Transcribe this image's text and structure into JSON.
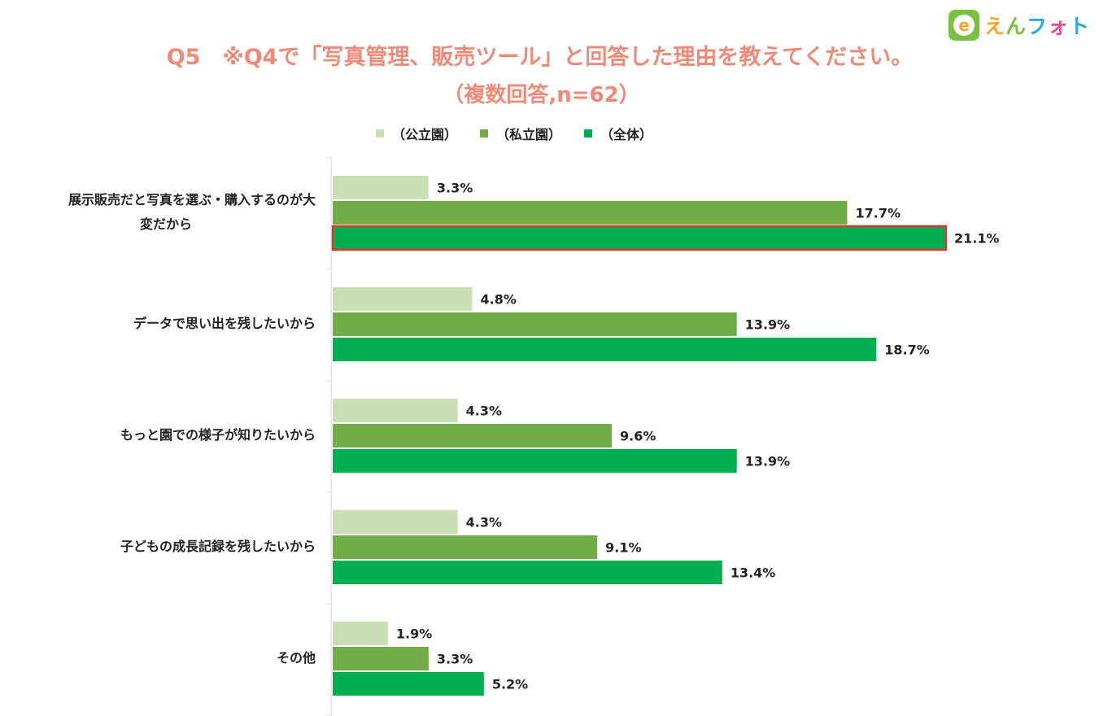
{
  "brand": {
    "logo_letter": "e",
    "name": "えんフォト"
  },
  "chart_data": {
    "type": "bar",
    "orientation": "horizontal",
    "title": "Q5　※Q4で「写真管理、販売ツール」と回答した理由を教えてください。",
    "subtitle": "（複数回答,n=62）",
    "categories": [
      [
        "展示販売だと写真を選ぶ・購入するのが大",
        "変だから"
      ],
      [
        "データで思い出を残したいから"
      ],
      [
        "もっと園での様子が知りたいから"
      ],
      [
        "子どもの成長記録を残したいから"
      ],
      [
        "その他"
      ]
    ],
    "series": [
      {
        "name": "（公立園）",
        "color": "#c8e0b4",
        "values": [
          3.3,
          4.8,
          4.3,
          4.3,
          1.9
        ]
      },
      {
        "name": "（私立園）",
        "color": "#70ad47",
        "values": [
          17.7,
          13.9,
          9.6,
          9.1,
          3.3
        ]
      },
      {
        "name": "（全体）",
        "color": "#00b050",
        "values": [
          21.1,
          18.7,
          13.9,
          13.4,
          5.2
        ]
      }
    ],
    "value_suffix": "%",
    "highlight": {
      "series": 2,
      "category": 0,
      "outline_color": "#e03030"
    },
    "legend_position": "top",
    "grid": false
  }
}
